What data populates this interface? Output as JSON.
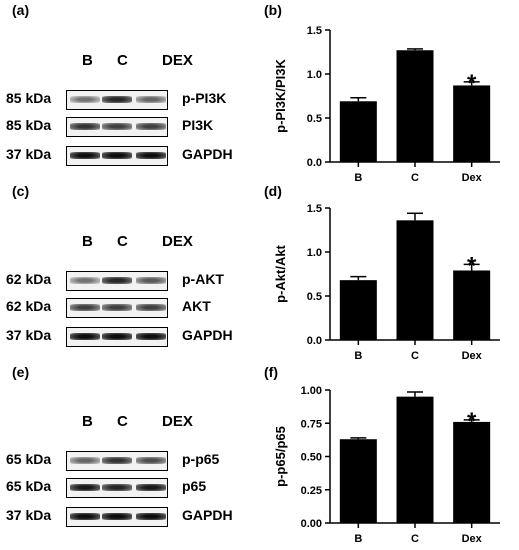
{
  "panel_labels": [
    "(a)",
    "(b)",
    "(c)",
    "(d)",
    "(e)",
    "(f)"
  ],
  "blots": [
    {
      "lanes": [
        "B",
        "C",
        "DEX"
      ],
      "rows": [
        {
          "kda": "85 kDa",
          "protein": "p-PI3K",
          "intensity": [
            0.55,
            0.85,
            0.6
          ]
        },
        {
          "kda": "85 kDa",
          "protein": "PI3K",
          "intensity": [
            0.8,
            0.75,
            0.75
          ]
        },
        {
          "kda": "37 kDa",
          "protein": "GAPDH",
          "intensity": [
            0.95,
            0.95,
            0.95
          ]
        }
      ]
    },
    {
      "lanes": [
        "B",
        "C",
        "DEX"
      ],
      "rows": [
        {
          "kda": "62 kDa",
          "protein": "p-AKT",
          "intensity": [
            0.55,
            0.85,
            0.65
          ]
        },
        {
          "kda": "62 kDa",
          "protein": "AKT",
          "intensity": [
            0.75,
            0.75,
            0.75
          ]
        },
        {
          "kda": "37 kDa",
          "protein": "GAPDH",
          "intensity": [
            0.95,
            0.95,
            0.95
          ]
        }
      ]
    },
    {
      "lanes": [
        "B",
        "C",
        "DEX"
      ],
      "rows": [
        {
          "kda": "65 kDa",
          "protein": "p-p65",
          "intensity": [
            0.6,
            0.8,
            0.7
          ]
        },
        {
          "kda": "65 kDa",
          "protein": "p65",
          "intensity": [
            0.9,
            0.85,
            0.9
          ]
        },
        {
          "kda": "37 kDa",
          "protein": "GAPDH",
          "intensity": [
            0.95,
            0.95,
            0.95
          ]
        }
      ]
    }
  ],
  "chart_data": [
    {
      "type": "bar",
      "categories": [
        "B",
        "C",
        "Dex"
      ],
      "values": [
        0.69,
        1.27,
        0.87
      ],
      "errors": [
        0.04,
        0.015,
        0.04
      ],
      "ylabel": "p-PI3K/PI3K",
      "ylim": [
        0,
        1.5
      ],
      "yticks": [
        0,
        0.5,
        1.0,
        1.5
      ],
      "ytick_labels": [
        "0.0",
        "0.5",
        "1.0",
        "1.5"
      ],
      "significance": [
        "",
        "",
        "*"
      ],
      "bar_color": "#000000"
    },
    {
      "type": "bar",
      "categories": [
        "B",
        "C",
        "Dex"
      ],
      "values": [
        0.68,
        1.36,
        0.79
      ],
      "errors": [
        0.04,
        0.08,
        0.07
      ],
      "ylabel": "p-Akt/Akt",
      "ylim": [
        0,
        1.5
      ],
      "yticks": [
        0,
        0.5,
        1.0,
        1.5
      ],
      "ytick_labels": [
        "0.0",
        "0.5",
        "1.0",
        "1.5"
      ],
      "significance": [
        "",
        "",
        "*"
      ],
      "bar_color": "#000000"
    },
    {
      "type": "bar",
      "categories": [
        "B",
        "C",
        "Dex"
      ],
      "values": [
        0.63,
        0.95,
        0.76
      ],
      "errors": [
        0.01,
        0.035,
        0.015
      ],
      "ylabel": "p-p65/p65",
      "ylim": [
        0,
        1.0
      ],
      "yticks": [
        0,
        0.25,
        0.5,
        0.75,
        1.0
      ],
      "ytick_labels": [
        "0.00",
        "0.25",
        "0.50",
        "0.75",
        "1.00"
      ],
      "significance": [
        "",
        "",
        "*"
      ],
      "bar_color": "#000000"
    }
  ]
}
